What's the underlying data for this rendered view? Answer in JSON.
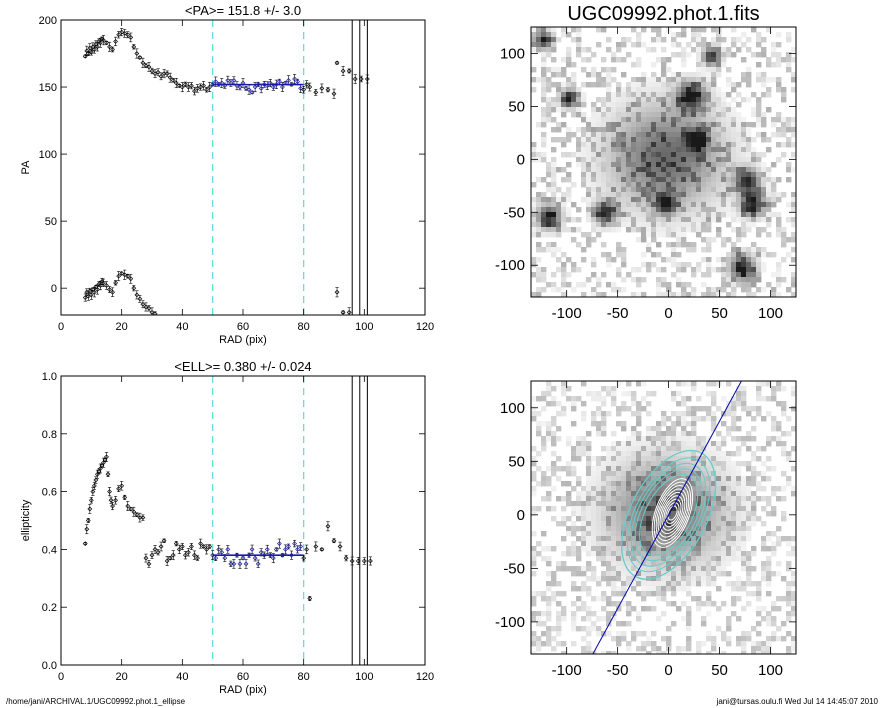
{
  "footer": {
    "left": "/home/jani/ARCHIVAL.1/UGC09992.phot.1_ellipse",
    "right": "jani@tursas.oulu.fi  Wed Jul 14 14:45:07 2010"
  },
  "colors": {
    "fit": "#1a1aa8",
    "marker": "#66dddd",
    "contour_inner": "#ffffff",
    "contour_outer": "#66cccc",
    "axis_line": "#0000aa"
  },
  "chart_data": [
    {
      "type": "scatter",
      "title": "<PA>= 151.8 +/-   3.0",
      "xlabel": "RAD (pix)",
      "ylabel": "PA",
      "xlim": [
        0,
        120
      ],
      "ylim": [
        -20,
        200
      ],
      "xticks": [
        0,
        20,
        40,
        60,
        80,
        100,
        120
      ],
      "yticks": [
        0,
        50,
        100,
        150,
        200
      ],
      "markers_x": [
        50,
        80
      ],
      "vlines_x": [
        96,
        98.5,
        101
      ],
      "fit": {
        "y": 151.8,
        "x_range": [
          50,
          80
        ]
      },
      "points": [
        [
          8,
          173
        ],
        [
          8.5,
          177
        ],
        [
          9,
          175
        ],
        [
          9.5,
          179
        ],
        [
          10,
          176
        ],
        [
          10.5,
          180
        ],
        [
          11,
          178
        ],
        [
          11.5,
          182
        ],
        [
          12,
          180
        ],
        [
          12.5,
          184
        ],
        [
          13,
          183
        ],
        [
          13.5,
          186
        ],
        [
          14,
          185
        ],
        [
          15,
          183
        ],
        [
          16,
          180
        ],
        [
          17,
          178
        ],
        [
          18,
          184
        ],
        [
          19,
          189
        ],
        [
          20,
          191
        ],
        [
          21,
          190
        ],
        [
          22,
          189
        ],
        [
          23,
          187
        ],
        [
          24,
          180
        ],
        [
          25,
          175
        ],
        [
          26,
          172
        ],
        [
          27,
          168
        ],
        [
          28,
          166
        ],
        [
          29,
          165
        ],
        [
          30,
          162
        ],
        [
          31,
          160
        ],
        [
          32,
          161
        ],
        [
          33,
          158
        ],
        [
          34,
          160
        ],
        [
          35,
          160
        ],
        [
          36,
          157
        ],
        [
          37,
          155
        ],
        [
          38,
          153
        ],
        [
          39,
          151
        ],
        [
          40,
          150
        ],
        [
          41,
          152
        ],
        [
          42,
          150
        ],
        [
          43,
          151
        ],
        [
          44,
          147
        ],
        [
          45,
          149
        ],
        [
          46,
          150
        ],
        [
          47,
          151
        ],
        [
          48,
          148
        ],
        [
          49,
          150
        ],
        [
          50,
          152
        ],
        [
          51,
          154
        ],
        [
          52,
          152
        ],
        [
          53,
          153
        ],
        [
          54,
          151
        ],
        [
          55,
          155
        ],
        [
          56,
          153
        ],
        [
          57,
          155
        ],
        [
          58,
          151
        ],
        [
          59,
          150
        ],
        [
          60,
          153
        ],
        [
          61,
          149
        ],
        [
          62,
          148
        ],
        [
          63,
          146
        ],
        [
          64,
          150
        ],
        [
          65,
          152
        ],
        [
          66,
          149
        ],
        [
          67,
          152
        ],
        [
          68,
          151
        ],
        [
          69,
          153
        ],
        [
          70,
          150
        ],
        [
          71,
          152
        ],
        [
          72,
          154
        ],
        [
          73,
          150
        ],
        [
          74,
          153
        ],
        [
          75,
          155
        ],
        [
          76,
          152
        ],
        [
          77,
          156
        ],
        [
          78,
          154
        ],
        [
          79,
          149
        ],
        [
          80,
          148
        ],
        [
          81,
          152
        ],
        [
          82,
          150
        ],
        [
          84,
          146
        ],
        [
          86,
          149
        ],
        [
          88,
          148
        ],
        [
          90,
          145
        ],
        [
          91,
          168
        ],
        [
          93,
          162
        ],
        [
          95,
          162
        ],
        [
          97,
          156
        ],
        [
          99,
          156
        ],
        [
          101,
          156
        ],
        [
          8,
          -7
        ],
        [
          8.5,
          -3
        ],
        [
          9,
          -6
        ],
        [
          9.5,
          -2
        ],
        [
          10,
          -5
        ],
        [
          10.5,
          -1
        ],
        [
          11,
          -3
        ],
        [
          11.5,
          1
        ],
        [
          12,
          -1
        ],
        [
          12.5,
          3
        ],
        [
          13,
          2
        ],
        [
          13.5,
          5
        ],
        [
          14,
          4
        ],
        [
          15,
          2
        ],
        [
          16,
          -1
        ],
        [
          17,
          -3
        ],
        [
          18,
          4
        ],
        [
          19,
          9
        ],
        [
          20,
          11
        ],
        [
          21,
          10
        ],
        [
          22,
          9
        ],
        [
          23,
          7
        ],
        [
          24,
          0
        ],
        [
          25,
          -5
        ],
        [
          26,
          -8
        ],
        [
          27,
          -12
        ],
        [
          28,
          -14
        ],
        [
          29,
          -15
        ],
        [
          30,
          -18
        ],
        [
          31,
          -19
        ],
        [
          91,
          -3
        ],
        [
          93,
          -18
        ],
        [
          95,
          -18
        ]
      ]
    },
    {
      "type": "image",
      "title": "UGC09992.phot.1.fits",
      "xlim": [
        -135,
        125
      ],
      "ylim": [
        -130,
        125
      ],
      "xticks": [
        -100,
        -50,
        0,
        50,
        100
      ],
      "yticks": [
        -100,
        -50,
        0,
        50,
        100
      ]
    },
    {
      "type": "scatter",
      "title": "<ELL>= 0.380 +/-  0.024",
      "xlabel": "RAD (pix)",
      "ylabel": "ellipticity",
      "xlim": [
        0,
        120
      ],
      "ylim": [
        0,
        1
      ],
      "xticks": [
        0,
        20,
        40,
        60,
        80,
        100,
        120
      ],
      "yticks": [
        0.0,
        0.2,
        0.4,
        0.6,
        0.8,
        1.0
      ],
      "markers_x": [
        50,
        80
      ],
      "vlines_x": [
        96,
        98.5,
        101
      ],
      "fit": {
        "y": 0.38,
        "x_range": [
          50,
          80
        ]
      },
      "points": [
        [
          8,
          0.42
        ],
        [
          8.5,
          0.47
        ],
        [
          9,
          0.5
        ],
        [
          9.5,
          0.54
        ],
        [
          10,
          0.57
        ],
        [
          10.5,
          0.6
        ],
        [
          11,
          0.62
        ],
        [
          11.5,
          0.64
        ],
        [
          12,
          0.66
        ],
        [
          12.5,
          0.67
        ],
        [
          13,
          0.68
        ],
        [
          13.5,
          0.69
        ],
        [
          14,
          0.7
        ],
        [
          14.5,
          0.71
        ],
        [
          15,
          0.72
        ],
        [
          15.5,
          0.66
        ],
        [
          16,
          0.6
        ],
        [
          16.5,
          0.57
        ],
        [
          17,
          0.55
        ],
        [
          18,
          0.57
        ],
        [
          19,
          0.61
        ],
        [
          20,
          0.62
        ],
        [
          21,
          0.58
        ],
        [
          22,
          0.55
        ],
        [
          23,
          0.54
        ],
        [
          24,
          0.53
        ],
        [
          25,
          0.52
        ],
        [
          26,
          0.51
        ],
        [
          27,
          0.51
        ],
        [
          28,
          0.37
        ],
        [
          29,
          0.35
        ],
        [
          30,
          0.38
        ],
        [
          31,
          0.4
        ],
        [
          32,
          0.39
        ],
        [
          33,
          0.41
        ],
        [
          34,
          0.43
        ],
        [
          35,
          0.36
        ],
        [
          36,
          0.37
        ],
        [
          37,
          0.38
        ],
        [
          38,
          0.42
        ],
        [
          39,
          0.4
        ],
        [
          40,
          0.41
        ],
        [
          41,
          0.38
        ],
        [
          42,
          0.39
        ],
        [
          43,
          0.41
        ],
        [
          44,
          0.38
        ],
        [
          45,
          0.37
        ],
        [
          46,
          0.42
        ],
        [
          47,
          0.41
        ],
        [
          48,
          0.4
        ],
        [
          49,
          0.41
        ],
        [
          50,
          0.38
        ],
        [
          51,
          0.37
        ],
        [
          52,
          0.4
        ],
        [
          53,
          0.39
        ],
        [
          54,
          0.37
        ],
        [
          55,
          0.4
        ],
        [
          56,
          0.35
        ],
        [
          57,
          0.35
        ],
        [
          58,
          0.38
        ],
        [
          59,
          0.35
        ],
        [
          60,
          0.37
        ],
        [
          61,
          0.35
        ],
        [
          62,
          0.38
        ],
        [
          63,
          0.4
        ],
        [
          64,
          0.37
        ],
        [
          65,
          0.35
        ],
        [
          66,
          0.39
        ],
        [
          67,
          0.38
        ],
        [
          68,
          0.4
        ],
        [
          69,
          0.38
        ],
        [
          70,
          0.37
        ],
        [
          71,
          0.4
        ],
        [
          72,
          0.42
        ],
        [
          73,
          0.38
        ],
        [
          74,
          0.4
        ],
        [
          75,
          0.41
        ],
        [
          76,
          0.38
        ],
        [
          77,
          0.42
        ],
        [
          78,
          0.4
        ],
        [
          79,
          0.41
        ],
        [
          80,
          0.37
        ],
        [
          81,
          0.4
        ],
        [
          82,
          0.23
        ],
        [
          84,
          0.41
        ],
        [
          86,
          0.4
        ],
        [
          88,
          0.48
        ],
        [
          90,
          0.43
        ],
        [
          92,
          0.41
        ],
        [
          94,
          0.37
        ],
        [
          96,
          0.36
        ],
        [
          98,
          0.36
        ],
        [
          100,
          0.36
        ],
        [
          102,
          0.36
        ]
      ]
    },
    {
      "type": "image",
      "title": "",
      "xlim": [
        -135,
        125
      ],
      "ylim": [
        -130,
        125
      ],
      "xticks": [
        -100,
        -50,
        0,
        50,
        100
      ],
      "yticks": [
        -100,
        -50,
        0,
        50,
        100
      ]
    }
  ]
}
